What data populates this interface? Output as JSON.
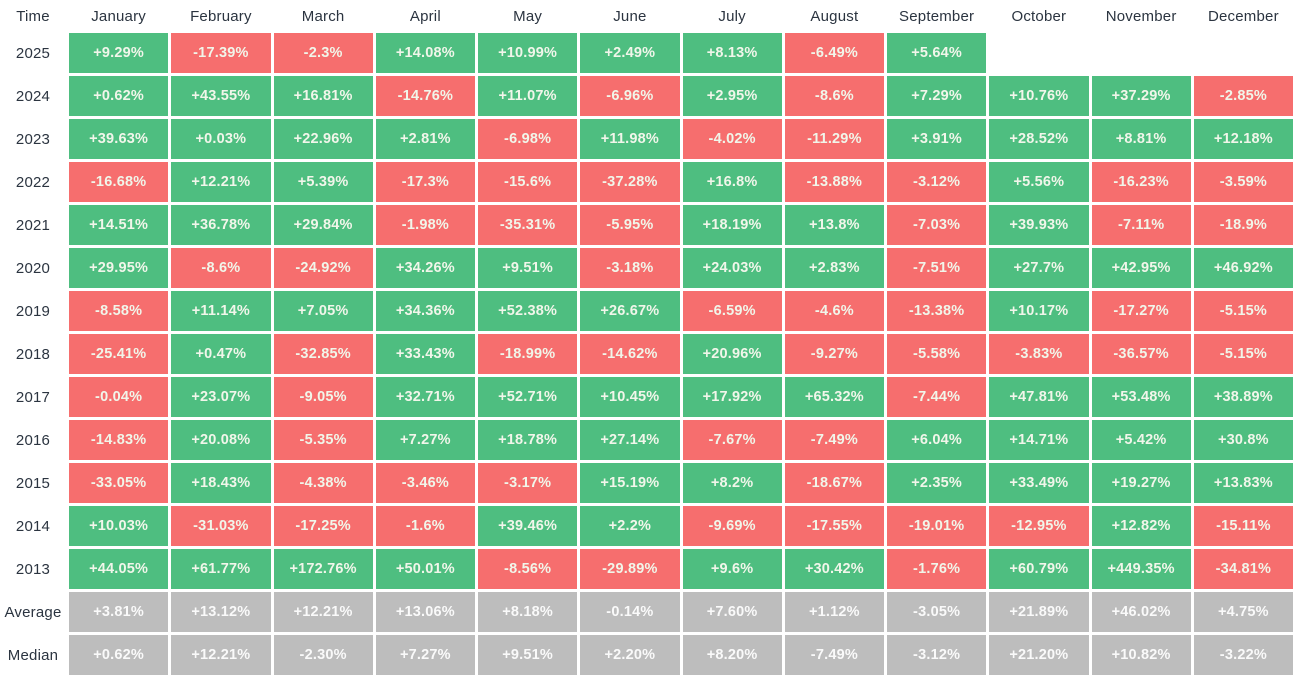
{
  "table": {
    "corner_label": "Time",
    "months": [
      "January",
      "February",
      "March",
      "April",
      "May",
      "June",
      "July",
      "August",
      "September",
      "October",
      "November",
      "December"
    ],
    "rows": [
      {
        "label": "2025",
        "type": "year",
        "values": [
          "+9.29%",
          "-17.39%",
          "-2.3%",
          "+14.08%",
          "+10.99%",
          "+2.49%",
          "+8.13%",
          "-6.49%",
          "+5.64%",
          "",
          "",
          ""
        ]
      },
      {
        "label": "2024",
        "type": "year",
        "values": [
          "+0.62%",
          "+43.55%",
          "+16.81%",
          "-14.76%",
          "+11.07%",
          "-6.96%",
          "+2.95%",
          "-8.6%",
          "+7.29%",
          "+10.76%",
          "+37.29%",
          "-2.85%"
        ]
      },
      {
        "label": "2023",
        "type": "year",
        "values": [
          "+39.63%",
          "+0.03%",
          "+22.96%",
          "+2.81%",
          "-6.98%",
          "+11.98%",
          "-4.02%",
          "-11.29%",
          "+3.91%",
          "+28.52%",
          "+8.81%",
          "+12.18%"
        ]
      },
      {
        "label": "2022",
        "type": "year",
        "values": [
          "-16.68%",
          "+12.21%",
          "+5.39%",
          "-17.3%",
          "-15.6%",
          "-37.28%",
          "+16.8%",
          "-13.88%",
          "-3.12%",
          "+5.56%",
          "-16.23%",
          "-3.59%"
        ]
      },
      {
        "label": "2021",
        "type": "year",
        "values": [
          "+14.51%",
          "+36.78%",
          "+29.84%",
          "-1.98%",
          "-35.31%",
          "-5.95%",
          "+18.19%",
          "+13.8%",
          "-7.03%",
          "+39.93%",
          "-7.11%",
          "-18.9%"
        ]
      },
      {
        "label": "2020",
        "type": "year",
        "values": [
          "+29.95%",
          "-8.6%",
          "-24.92%",
          "+34.26%",
          "+9.51%",
          "-3.18%",
          "+24.03%",
          "+2.83%",
          "-7.51%",
          "+27.7%",
          "+42.95%",
          "+46.92%"
        ]
      },
      {
        "label": "2019",
        "type": "year",
        "values": [
          "-8.58%",
          "+11.14%",
          "+7.05%",
          "+34.36%",
          "+52.38%",
          "+26.67%",
          "-6.59%",
          "-4.6%",
          "-13.38%",
          "+10.17%",
          "-17.27%",
          "-5.15%"
        ]
      },
      {
        "label": "2018",
        "type": "year",
        "values": [
          "-25.41%",
          "+0.47%",
          "-32.85%",
          "+33.43%",
          "-18.99%",
          "-14.62%",
          "+20.96%",
          "-9.27%",
          "-5.58%",
          "-3.83%",
          "-36.57%",
          "-5.15%"
        ]
      },
      {
        "label": "2017",
        "type": "year",
        "values": [
          "-0.04%",
          "+23.07%",
          "-9.05%",
          "+32.71%",
          "+52.71%",
          "+10.45%",
          "+17.92%",
          "+65.32%",
          "-7.44%",
          "+47.81%",
          "+53.48%",
          "+38.89%"
        ]
      },
      {
        "label": "2016",
        "type": "year",
        "values": [
          "-14.83%",
          "+20.08%",
          "-5.35%",
          "+7.27%",
          "+18.78%",
          "+27.14%",
          "-7.67%",
          "-7.49%",
          "+6.04%",
          "+14.71%",
          "+5.42%",
          "+30.8%"
        ]
      },
      {
        "label": "2015",
        "type": "year",
        "values": [
          "-33.05%",
          "+18.43%",
          "-4.38%",
          "-3.46%",
          "-3.17%",
          "+15.19%",
          "+8.2%",
          "-18.67%",
          "+2.35%",
          "+33.49%",
          "+19.27%",
          "+13.83%"
        ]
      },
      {
        "label": "2014",
        "type": "year",
        "values": [
          "+10.03%",
          "-31.03%",
          "-17.25%",
          "-1.6%",
          "+39.46%",
          "+2.2%",
          "-9.69%",
          "-17.55%",
          "-19.01%",
          "-12.95%",
          "+12.82%",
          "-15.11%"
        ]
      },
      {
        "label": "2013",
        "type": "year",
        "values": [
          "+44.05%",
          "+61.77%",
          "+172.76%",
          "+50.01%",
          "-8.56%",
          "-29.89%",
          "+9.6%",
          "+30.42%",
          "-1.76%",
          "+60.79%",
          "+449.35%",
          "-34.81%"
        ]
      },
      {
        "label": "Average",
        "type": "summary",
        "values": [
          "+3.81%",
          "+13.12%",
          "+12.21%",
          "+13.06%",
          "+8.18%",
          "-0.14%",
          "+7.60%",
          "+1.12%",
          "-3.05%",
          "+21.89%",
          "+46.02%",
          "+4.75%"
        ]
      },
      {
        "label": "Median",
        "type": "summary",
        "values": [
          "+0.62%",
          "+12.21%",
          "-2.30%",
          "+7.27%",
          "+9.51%",
          "+2.20%",
          "+8.20%",
          "-7.49%",
          "-3.12%",
          "+21.20%",
          "+10.82%",
          "-3.22%"
        ]
      }
    ],
    "colors": {
      "positive": "#4ebe80",
      "negative": "#f66e6e",
      "summary": "#bdbdbd",
      "cell_text": "#f1f6ea",
      "label_text": "#2b3440"
    }
  },
  "chart_data": {
    "type": "heatmap",
    "x_categories": [
      "January",
      "February",
      "March",
      "April",
      "May",
      "June",
      "July",
      "August",
      "September",
      "October",
      "November",
      "December"
    ],
    "y_categories": [
      "2025",
      "2024",
      "2023",
      "2022",
      "2021",
      "2020",
      "2019",
      "2018",
      "2017",
      "2016",
      "2015",
      "2014",
      "2013",
      "Average",
      "Median"
    ],
    "unit": "%",
    "values": [
      [
        9.29,
        -17.39,
        -2.3,
        14.08,
        10.99,
        2.49,
        8.13,
        -6.49,
        5.64,
        null,
        null,
        null
      ],
      [
        0.62,
        43.55,
        16.81,
        -14.76,
        11.07,
        -6.96,
        2.95,
        -8.6,
        7.29,
        10.76,
        37.29,
        -2.85
      ],
      [
        39.63,
        0.03,
        22.96,
        2.81,
        -6.98,
        11.98,
        -4.02,
        -11.29,
        3.91,
        28.52,
        8.81,
        12.18
      ],
      [
        -16.68,
        12.21,
        5.39,
        -17.3,
        -15.6,
        -37.28,
        16.8,
        -13.88,
        -3.12,
        5.56,
        -16.23,
        -3.59
      ],
      [
        14.51,
        36.78,
        29.84,
        -1.98,
        -35.31,
        -5.95,
        18.19,
        13.8,
        -7.03,
        39.93,
        -7.11,
        -18.9
      ],
      [
        29.95,
        -8.6,
        -24.92,
        34.26,
        9.51,
        -3.18,
        24.03,
        2.83,
        -7.51,
        27.7,
        42.95,
        46.92
      ],
      [
        -8.58,
        11.14,
        7.05,
        34.36,
        52.38,
        26.67,
        -6.59,
        -4.6,
        -13.38,
        10.17,
        -17.27,
        -5.15
      ],
      [
        -25.41,
        0.47,
        -32.85,
        33.43,
        -18.99,
        -14.62,
        20.96,
        -9.27,
        -5.58,
        -3.83,
        -36.57,
        -5.15
      ],
      [
        -0.04,
        23.07,
        -9.05,
        32.71,
        52.71,
        10.45,
        17.92,
        65.32,
        -7.44,
        47.81,
        53.48,
        38.89
      ],
      [
        -14.83,
        20.08,
        -5.35,
        7.27,
        18.78,
        27.14,
        -7.67,
        -7.49,
        6.04,
        14.71,
        5.42,
        30.8
      ],
      [
        -33.05,
        18.43,
        -4.38,
        -3.46,
        -3.17,
        15.19,
        8.2,
        -18.67,
        2.35,
        33.49,
        19.27,
        13.83
      ],
      [
        10.03,
        -31.03,
        -17.25,
        -1.6,
        39.46,
        2.2,
        -9.69,
        -17.55,
        -19.01,
        -12.95,
        12.82,
        -15.11
      ],
      [
        44.05,
        61.77,
        172.76,
        50.01,
        -8.56,
        -29.89,
        9.6,
        30.42,
        -1.76,
        60.79,
        449.35,
        -34.81
      ],
      [
        3.81,
        13.12,
        12.21,
        13.06,
        8.18,
        -0.14,
        7.6,
        1.12,
        -3.05,
        21.89,
        46.02,
        4.75
      ],
      [
        0.62,
        12.21,
        -2.3,
        7.27,
        9.51,
        2.2,
        8.2,
        -7.49,
        -3.12,
        21.2,
        10.82,
        -3.22
      ]
    ],
    "color_rule": "positive=green, negative=red, Average/Median rows=gray",
    "legend_position": "none",
    "grid": false
  }
}
